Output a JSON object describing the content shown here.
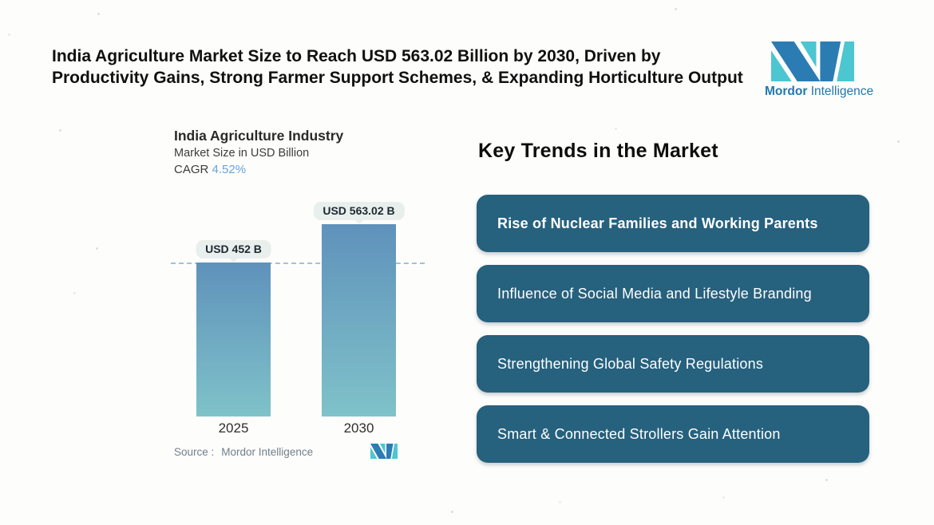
{
  "header": {
    "headline_line1": "India Agriculture Market Size to Reach USD 563.02 Billion by 2030, Driven by",
    "headline_line2": "Productivity Gains, Strong Farmer Support Schemes, & Expanding Horticulture Output"
  },
  "brand": {
    "name_bold": "Mordor",
    "name_regular": "Intelligence",
    "logo_colors": {
      "blue": "#2b7cb3",
      "teal": "#4cc6d0"
    }
  },
  "chart": {
    "title": "India Agriculture Industry",
    "subtitle": "Market Size in USD Billion",
    "cagr_label": "CAGR",
    "cagr_value": "4.52%",
    "cagr_value_color": "#68a3d9",
    "source_label": "Source :",
    "source_value": "Mordor Intelligence"
  },
  "chart_data": {
    "type": "bar",
    "title": "India Agriculture Industry",
    "subtitle": "Market Size in USD Billion",
    "unit": "USD Billion",
    "categories": [
      "2025",
      "2030"
    ],
    "values": [
      452,
      563.02
    ],
    "bar_labels": [
      "USD 452 B",
      "USD 563.02 B"
    ],
    "cagr": "4.52%",
    "baseline_at_value": 452,
    "ylim": [
      0,
      563.02
    ],
    "grid": false,
    "legend": false,
    "bar_gradient": [
      "#5f92bb",
      "#7fc2c9"
    ],
    "dash_line_color": "#a2c0dc",
    "label_pill_bg": "#e9efec"
  },
  "trends": {
    "heading": "Key Trends in the Market",
    "card_color": "#26617e",
    "items": [
      {
        "label": "Rise of Nuclear Families and Working Parents",
        "emphasis": true
      },
      {
        "label": "Influence of Social Media and Lifestyle Branding",
        "emphasis": false
      },
      {
        "label": "Strengthening Global Safety Regulations",
        "emphasis": false
      },
      {
        "label": "Smart & Connected Strollers Gain Attention",
        "emphasis": false
      }
    ]
  }
}
